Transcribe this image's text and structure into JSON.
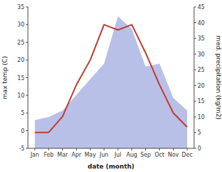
{
  "chart_data": {
    "type": "line",
    "xlabel": "date (month)",
    "ylabel": "max temp (C)",
    "y2label": "med. precipitation (kg/m2)",
    "categories": [
      "Jan",
      "Feb",
      "Mar",
      "Apr",
      "May",
      "Jun",
      "Jul",
      "Aug",
      "Sep",
      "Oct",
      "Nov",
      "Dec"
    ],
    "series": [
      {
        "type": "area",
        "axis": "y2",
        "color": "#b8c0e8",
        "values": [
          9.0,
          10.0,
          12.0,
          17.0,
          22.0,
          27.0,
          42.0,
          38.0,
          26.0,
          27.0,
          16.0,
          12.0
        ]
      },
      {
        "type": "line",
        "color": "#c0392b",
        "values": [
          -0.5,
          -0.5,
          4.0,
          13.0,
          20.0,
          30.0,
          28.5,
          30.0,
          22.0,
          13.0,
          5.0,
          1.0
        ]
      }
    ],
    "ylim": [
      -5,
      35
    ],
    "yticks": [
      -5,
      0,
      5,
      10,
      15,
      20,
      25,
      30,
      35
    ],
    "y2lim": [
      0,
      45
    ],
    "y2ticks": [
      0,
      5,
      10,
      15,
      20,
      25,
      30,
      35,
      40,
      45
    ],
    "grid": false
  }
}
